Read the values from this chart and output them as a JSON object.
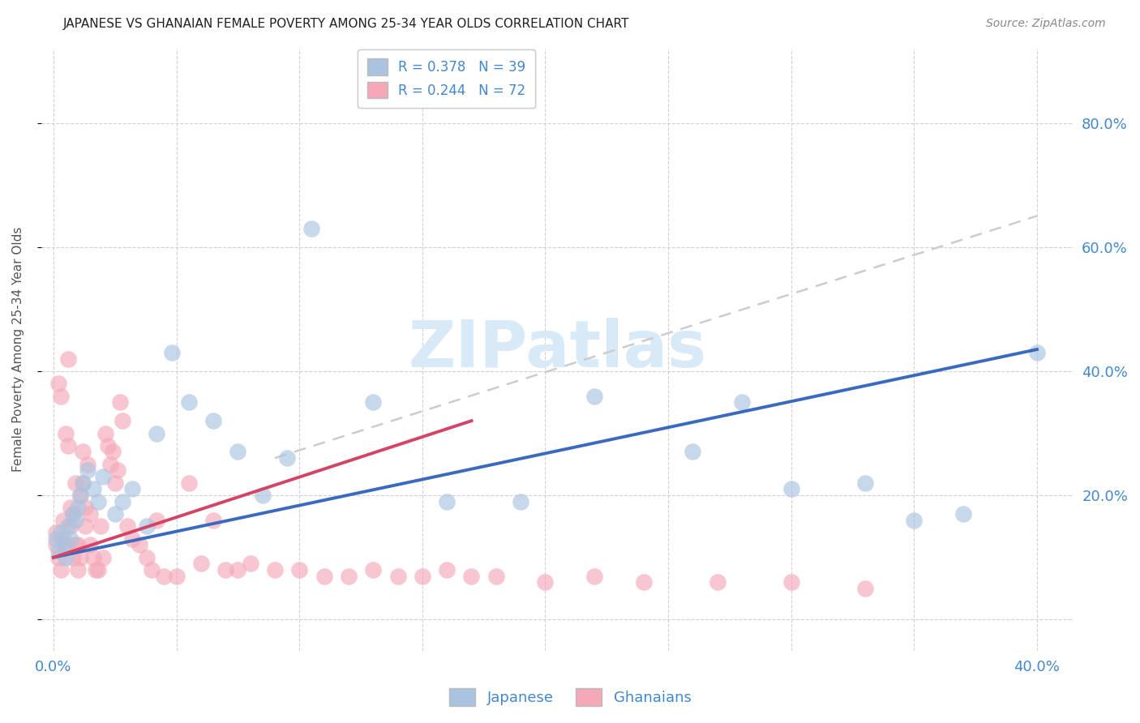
{
  "title": "JAPANESE VS GHANAIAN FEMALE POVERTY AMONG 25-34 YEAR OLDS CORRELATION CHART",
  "source": "Source: ZipAtlas.com",
  "ylabel": "Female Poverty Among 25-34 Year Olds",
  "xlim": [
    -0.005,
    0.415
  ],
  "ylim": [
    -0.05,
    0.92
  ],
  "xticks": [
    0.0,
    0.05,
    0.1,
    0.15,
    0.2,
    0.25,
    0.3,
    0.35,
    0.4
  ],
  "yticks": [
    0.0,
    0.2,
    0.4,
    0.6,
    0.8
  ],
  "background_color": "#ffffff",
  "japanese_color": "#aac4e0",
  "ghanaian_color": "#f4a8b8",
  "japanese_line_color": "#3a6abf",
  "ghanaian_line_color": "#d44466",
  "gray_dashed_color": "#cccccc",
  "watermark_color": "#d8eaf8",
  "japanese_x": [
    0.001,
    0.002,
    0.003,
    0.004,
    0.005,
    0.006,
    0.007,
    0.008,
    0.009,
    0.01,
    0.011,
    0.012,
    0.014,
    0.016,
    0.018,
    0.02,
    0.025,
    0.028,
    0.032,
    0.038,
    0.042,
    0.048,
    0.055,
    0.065,
    0.075,
    0.085,
    0.095,
    0.105,
    0.13,
    0.16,
    0.19,
    0.22,
    0.26,
    0.28,
    0.3,
    0.33,
    0.35,
    0.37,
    0.4
  ],
  "japanese_y": [
    0.13,
    0.11,
    0.14,
    0.12,
    0.1,
    0.15,
    0.13,
    0.17,
    0.16,
    0.18,
    0.2,
    0.22,
    0.24,
    0.21,
    0.19,
    0.23,
    0.17,
    0.19,
    0.21,
    0.15,
    0.3,
    0.43,
    0.35,
    0.32,
    0.27,
    0.2,
    0.26,
    0.63,
    0.35,
    0.19,
    0.19,
    0.36,
    0.27,
    0.35,
    0.21,
    0.22,
    0.16,
    0.17,
    0.43
  ],
  "ghanaian_x": [
    0.001,
    0.001,
    0.002,
    0.002,
    0.003,
    0.003,
    0.004,
    0.004,
    0.005,
    0.005,
    0.006,
    0.006,
    0.007,
    0.007,
    0.008,
    0.008,
    0.009,
    0.009,
    0.01,
    0.01,
    0.011,
    0.011,
    0.012,
    0.012,
    0.013,
    0.013,
    0.014,
    0.015,
    0.015,
    0.016,
    0.017,
    0.018,
    0.019,
    0.02,
    0.021,
    0.022,
    0.023,
    0.024,
    0.025,
    0.026,
    0.027,
    0.028,
    0.03,
    0.032,
    0.035,
    0.038,
    0.04,
    0.042,
    0.045,
    0.05,
    0.055,
    0.06,
    0.065,
    0.07,
    0.075,
    0.08,
    0.09,
    0.1,
    0.11,
    0.12,
    0.13,
    0.14,
    0.15,
    0.16,
    0.17,
    0.18,
    0.2,
    0.22,
    0.24,
    0.27,
    0.3,
    0.33
  ],
  "ghanaian_y": [
    0.12,
    0.14,
    0.1,
    0.38,
    0.08,
    0.36,
    0.13,
    0.16,
    0.3,
    0.12,
    0.28,
    0.42,
    0.15,
    0.18,
    0.17,
    0.1,
    0.12,
    0.22,
    0.08,
    0.12,
    0.2,
    0.1,
    0.22,
    0.27,
    0.15,
    0.18,
    0.25,
    0.12,
    0.17,
    0.1,
    0.08,
    0.08,
    0.15,
    0.1,
    0.3,
    0.28,
    0.25,
    0.27,
    0.22,
    0.24,
    0.35,
    0.32,
    0.15,
    0.13,
    0.12,
    0.1,
    0.08,
    0.16,
    0.07,
    0.07,
    0.22,
    0.09,
    0.16,
    0.08,
    0.08,
    0.09,
    0.08,
    0.08,
    0.07,
    0.07,
    0.08,
    0.07,
    0.07,
    0.08,
    0.07,
    0.07,
    0.06,
    0.07,
    0.06,
    0.06,
    0.06,
    0.05
  ],
  "japanese_line_x0": 0.0,
  "japanese_line_y0": 0.1,
  "japanese_line_x1": 0.4,
  "japanese_line_y1": 0.435,
  "ghanaian_line_x0": 0.0,
  "ghanaian_line_y0": 0.1,
  "ghanaian_line_x1": 0.17,
  "ghanaian_line_y1": 0.32,
  "gray_line_x0": 0.09,
  "gray_line_y0": 0.26,
  "gray_line_x1": 0.4,
  "gray_line_y1": 0.65,
  "legend_japanese_label": "R = 0.378   N = 39",
  "legend_ghanaian_label": "R = 0.244   N = 72",
  "legend_japanese_short": "Japanese",
  "legend_ghanaian_short": "Ghanaians"
}
